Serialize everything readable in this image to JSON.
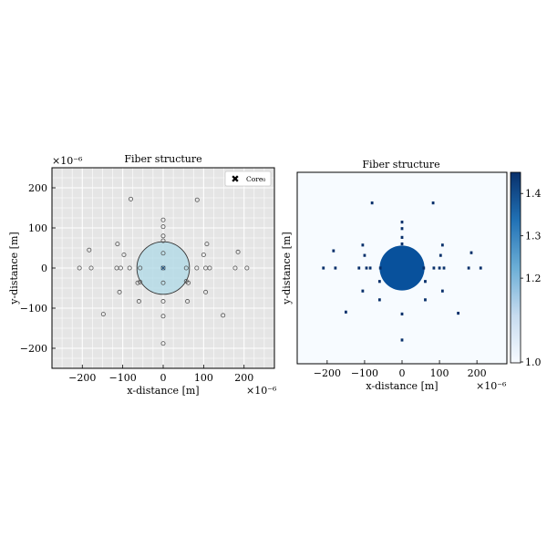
{
  "chart_data": [
    {
      "type": "scatter",
      "title": "Fiber structure",
      "xlabel": "x-distance [m]",
      "ylabel": "y-distance [m]",
      "x_offset_text": "×10⁻⁶",
      "y_offset_text": "×10⁻⁶",
      "xlim": [
        -275,
        275
      ],
      "ylim": [
        -250,
        250
      ],
      "xticks": [
        -200,
        -100,
        0,
        100,
        200
      ],
      "yticks": [
        -200,
        -100,
        0,
        100,
        200
      ],
      "xtick_labels": [
        "−200",
        "−100",
        "0",
        "100",
        "200"
      ],
      "ytick_labels": [
        "−200",
        "−100",
        "0",
        "100",
        "200"
      ],
      "grid": true,
      "legend": {
        "position": "top-right",
        "entries": [
          "Core₀"
        ]
      },
      "core": {
        "name": "Core₀",
        "x": 0,
        "y": 0,
        "radius": 65
      },
      "air_holes": [
        {
          "x": 0,
          "y": 120
        },
        {
          "x": 0,
          "y": 103
        },
        {
          "x": 0,
          "y": 80
        },
        {
          "x": 0,
          "y": 68
        },
        {
          "x": 0,
          "y": 37
        },
        {
          "x": 0,
          "y": 0
        },
        {
          "x": 0,
          "y": -37
        },
        {
          "x": 0,
          "y": -83
        },
        {
          "x": 0,
          "y": -120
        },
        {
          "x": 0,
          "y": -188
        },
        {
          "x": -80,
          "y": 172
        },
        {
          "x": 84,
          "y": 170
        },
        {
          "x": -183,
          "y": 45
        },
        {
          "x": 185,
          "y": 40
        },
        {
          "x": -207,
          "y": 0
        },
        {
          "x": -178,
          "y": 0
        },
        {
          "x": 178,
          "y": 0
        },
        {
          "x": 207,
          "y": 0
        },
        {
          "x": -113,
          "y": 60
        },
        {
          "x": 108,
          "y": 60
        },
        {
          "x": -97,
          "y": 33
        },
        {
          "x": 100,
          "y": 33
        },
        {
          "x": -115,
          "y": 0
        },
        {
          "x": -105,
          "y": 0
        },
        {
          "x": -83,
          "y": 0
        },
        {
          "x": -57,
          "y": 0
        },
        {
          "x": 57,
          "y": 0
        },
        {
          "x": 83,
          "y": 0
        },
        {
          "x": 105,
          "y": 0
        },
        {
          "x": 115,
          "y": 0
        },
        {
          "x": -63,
          "y": -37
        },
        {
          "x": -57,
          "y": -35
        },
        {
          "x": 57,
          "y": -33
        },
        {
          "x": 62,
          "y": -37
        },
        {
          "x": -108,
          "y": -60
        },
        {
          "x": 105,
          "y": -60
        },
        {
          "x": -60,
          "y": -83
        },
        {
          "x": 60,
          "y": -83
        },
        {
          "x": -148,
          "y": -115
        },
        {
          "x": 148,
          "y": -118
        }
      ]
    },
    {
      "type": "heatmap",
      "title": "Fiber structure",
      "xlabel": "x-distance [m]",
      "ylabel": "y-distance [m]",
      "x_offset_text": "×10⁻⁶",
      "xlim": [
        -280,
        280
      ],
      "ylim": [
        -250,
        250
      ],
      "xticks": [
        -200,
        -100,
        0,
        100,
        200
      ],
      "xtick_labels": [
        "−200",
        "−100",
        "0",
        "100",
        "200"
      ],
      "grid": false,
      "colormap": "Blues",
      "colorbar_ticks": [
        1.4,
        1.3,
        1.2,
        1.0
      ],
      "colorbar_tick_labels": [
        "1.4",
        "1.3",
        "1.2",
        "1.0"
      ],
      "colorbar_range": [
        1.0,
        1.45
      ],
      "background_value": 1.0,
      "core": {
        "x": 0,
        "y": 0,
        "radius": 60,
        "value": 1.45
      },
      "inclusions": [
        {
          "x": -80,
          "y": 170
        },
        {
          "x": 83,
          "y": 170
        },
        {
          "x": 0,
          "y": 120
        },
        {
          "x": 0,
          "y": 103
        },
        {
          "x": 0,
          "y": 80
        },
        {
          "x": 0,
          "y": 63
        },
        {
          "x": -183,
          "y": 45
        },
        {
          "x": 185,
          "y": 40
        },
        {
          "x": -105,
          "y": 60
        },
        {
          "x": 108,
          "y": 60
        },
        {
          "x": -100,
          "y": 33
        },
        {
          "x": 103,
          "y": 33
        },
        {
          "x": -210,
          "y": 0
        },
        {
          "x": -178,
          "y": 0
        },
        {
          "x": -115,
          "y": 0
        },
        {
          "x": -95,
          "y": 0
        },
        {
          "x": -85,
          "y": 0
        },
        {
          "x": -58,
          "y": 0
        },
        {
          "x": 58,
          "y": 0
        },
        {
          "x": 85,
          "y": 0
        },
        {
          "x": 100,
          "y": 0
        },
        {
          "x": 112,
          "y": 0
        },
        {
          "x": 178,
          "y": 0
        },
        {
          "x": 210,
          "y": 0
        },
        {
          "x": -60,
          "y": -35
        },
        {
          "x": 62,
          "y": -35
        },
        {
          "x": -105,
          "y": -60
        },
        {
          "x": 108,
          "y": -60
        },
        {
          "x": -60,
          "y": -83
        },
        {
          "x": 62,
          "y": -83
        },
        {
          "x": 0,
          "y": -120
        },
        {
          "x": -150,
          "y": -115
        },
        {
          "x": 150,
          "y": -118
        },
        {
          "x": 0,
          "y": -188
        }
      ]
    }
  ]
}
